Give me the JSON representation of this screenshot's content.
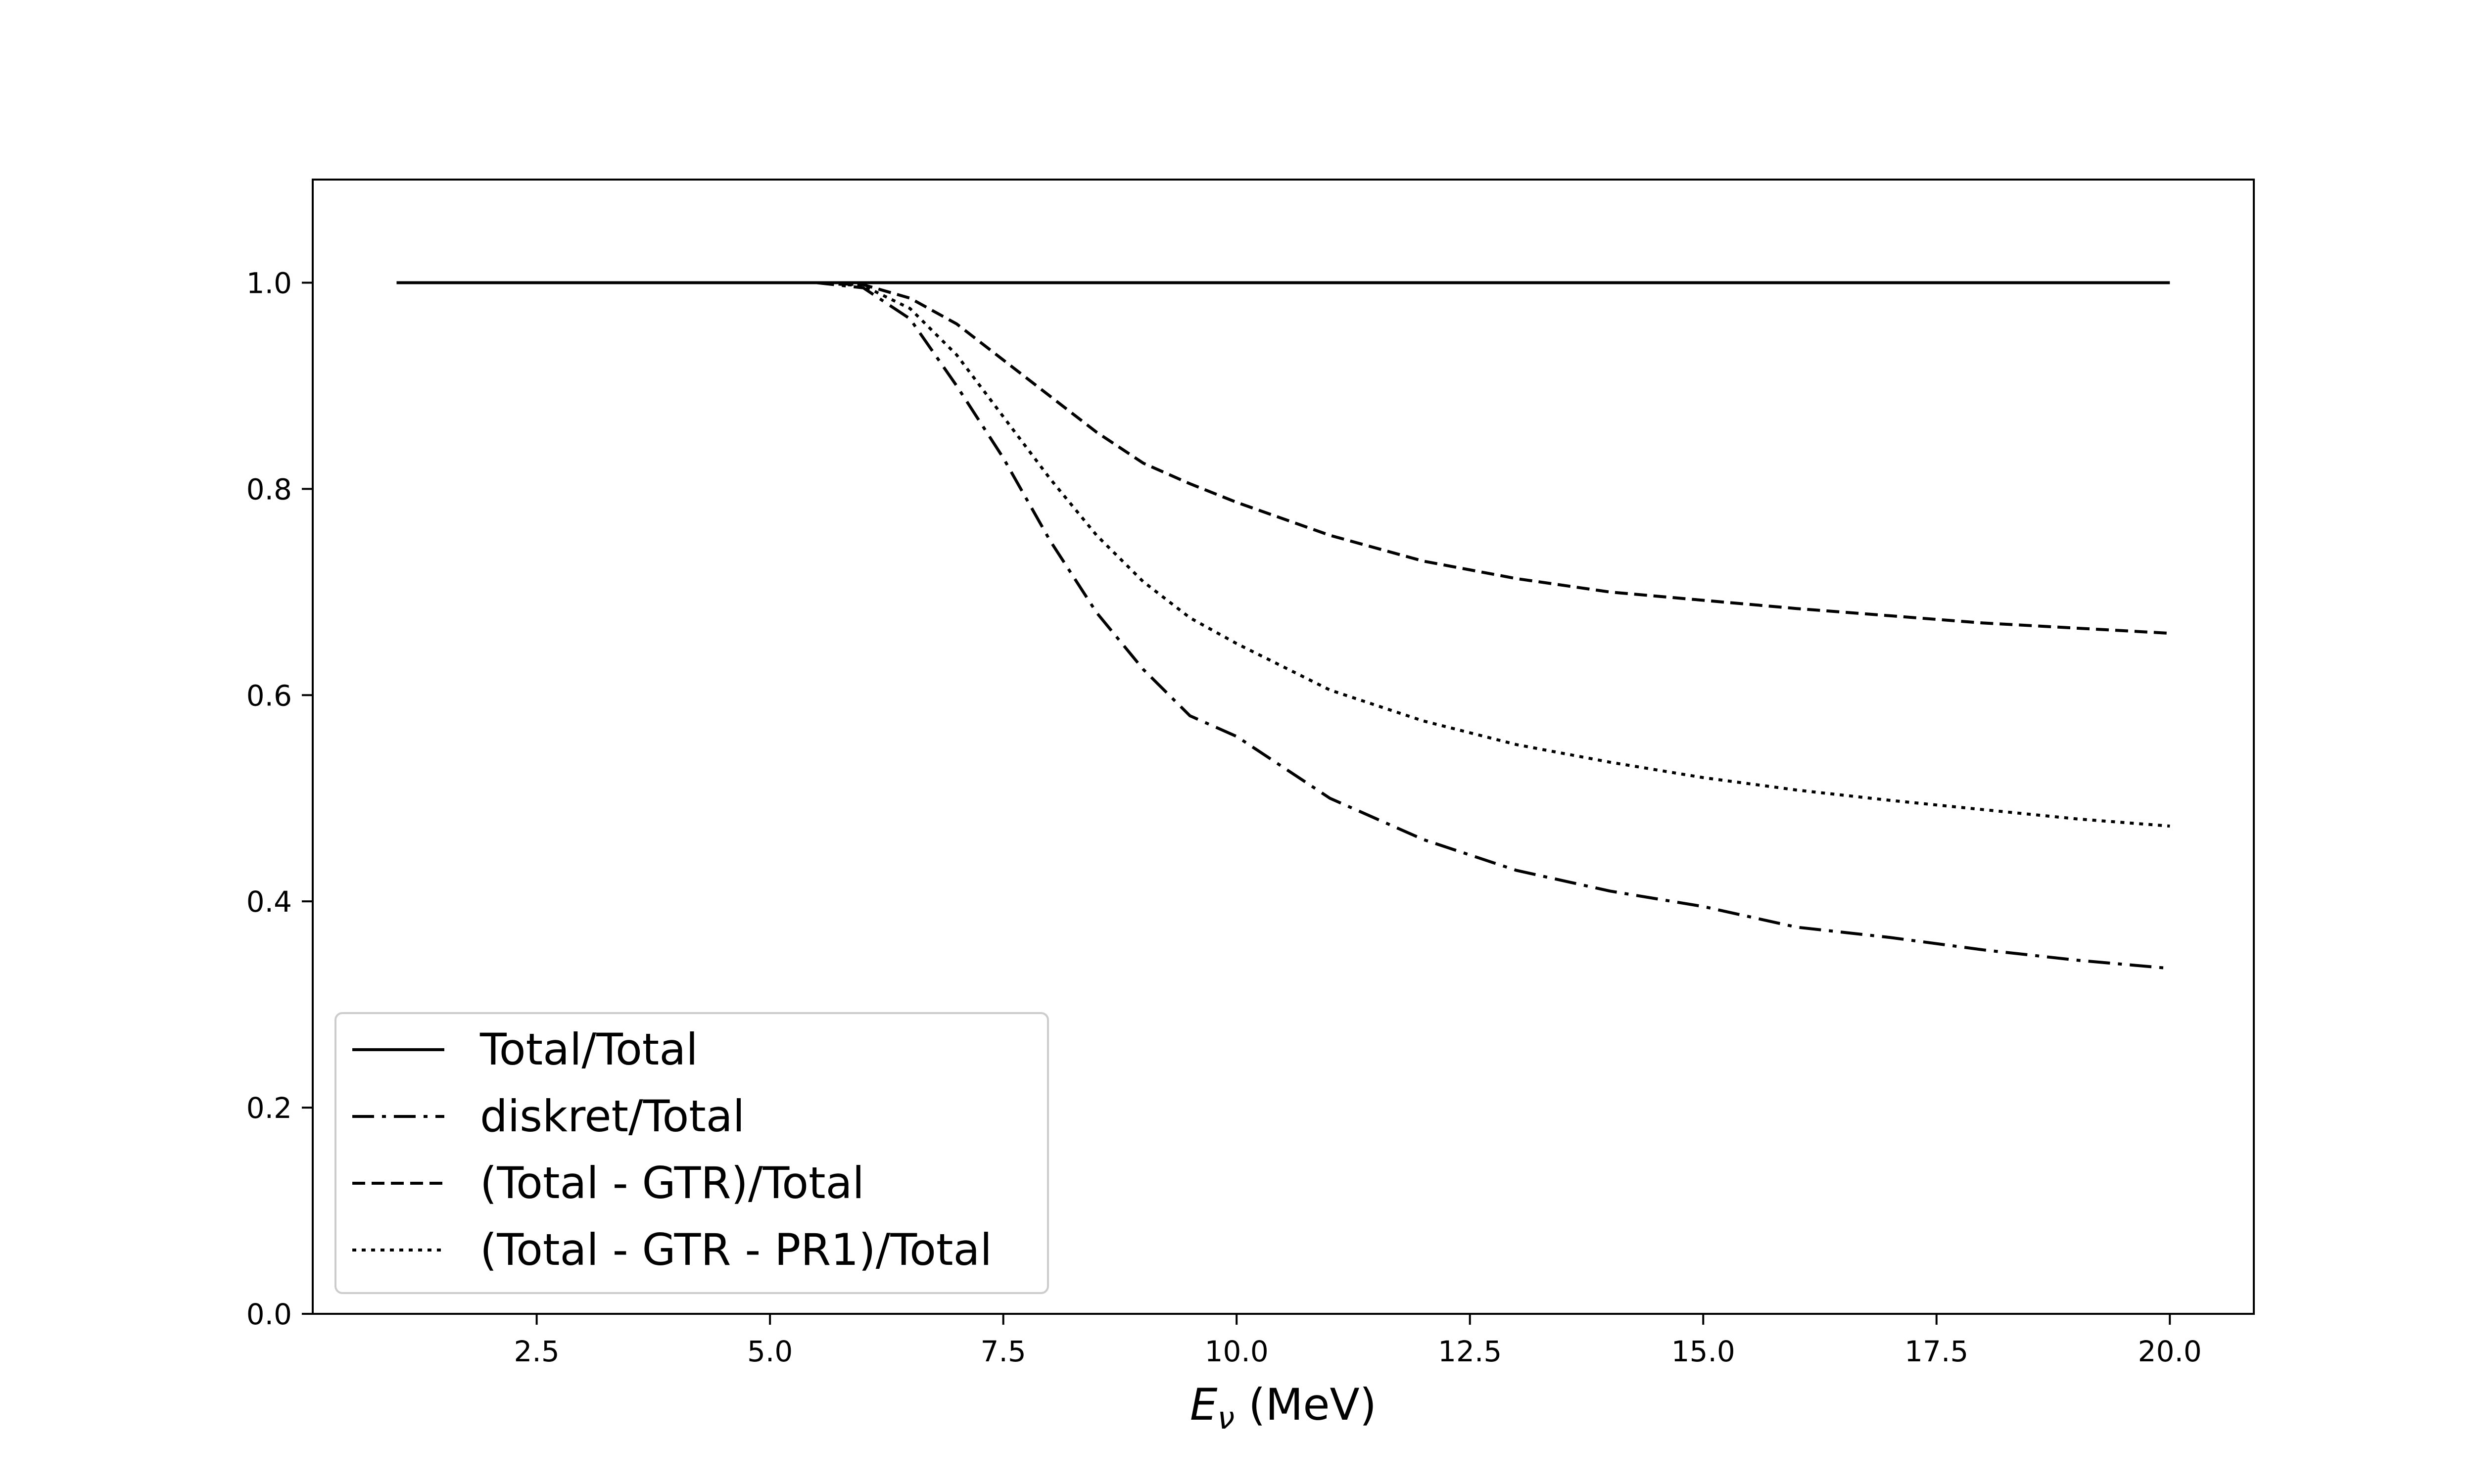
{
  "chart_data": {
    "type": "line",
    "title": "",
    "xlabel_var": "E",
    "xlabel_sub": "ν",
    "xlabel_unit": " (MeV)",
    "ylabel": "",
    "xlim": [
      0.1,
      20.9
    ],
    "ylim": [
      0.0,
      1.1
    ],
    "xticks": [
      2.5,
      5.0,
      7.5,
      10.0,
      12.5,
      15.0,
      17.5,
      20.0
    ],
    "xtick_labels": [
      "2.5",
      "5.0",
      "7.5",
      "10.0",
      "12.5",
      "15.0",
      "17.5",
      "20.0"
    ],
    "yticks": [
      0.0,
      0.2,
      0.4,
      0.6,
      0.8,
      1.0
    ],
    "ytick_labels": [
      "0.0",
      "0.2",
      "0.4",
      "0.6",
      "0.8",
      "1.0"
    ],
    "grid": false,
    "legend_position": "lower-left",
    "x": [
      1.0,
      2.0,
      3.0,
      4.0,
      5.0,
      5.5,
      6.0,
      6.5,
      7.0,
      7.5,
      8.0,
      8.5,
      9.0,
      9.5,
      10.0,
      11.0,
      12.0,
      13.0,
      14.0,
      15.0,
      16.0,
      17.0,
      18.0,
      19.0,
      20.0
    ],
    "series": [
      {
        "name": "Total/Total",
        "style": "solid",
        "color": "#000000",
        "values": [
          1.0,
          1.0,
          1.0,
          1.0,
          1.0,
          1.0,
          1.0,
          1.0,
          1.0,
          1.0,
          1.0,
          1.0,
          1.0,
          1.0,
          1.0,
          1.0,
          1.0,
          1.0,
          1.0,
          1.0,
          1.0,
          1.0,
          1.0,
          1.0,
          1.0
        ]
      },
      {
        "name": "diskret/Total",
        "style": "dashdot",
        "color": "#000000",
        "values": [
          1.0,
          1.0,
          1.0,
          1.0,
          1.0,
          1.0,
          0.995,
          0.965,
          0.9,
          0.83,
          0.75,
          0.68,
          0.625,
          0.58,
          0.56,
          0.5,
          0.46,
          0.43,
          0.41,
          0.395,
          0.375,
          0.365,
          0.353,
          0.343,
          0.335
        ]
      },
      {
        "name": "(Total - GTR)/Total",
        "style": "dashed",
        "color": "#000000",
        "values": [
          1.0,
          1.0,
          1.0,
          1.0,
          1.0,
          1.0,
          0.998,
          0.985,
          0.96,
          0.925,
          0.89,
          0.855,
          0.825,
          0.805,
          0.787,
          0.755,
          0.73,
          0.713,
          0.7,
          0.692,
          0.684,
          0.677,
          0.67,
          0.665,
          0.66
        ]
      },
      {
        "name": "(Total - GTR - PR1)/Total",
        "style": "dotted",
        "color": "#000000",
        "values": [
          1.0,
          1.0,
          1.0,
          1.0,
          1.0,
          1.0,
          0.997,
          0.975,
          0.93,
          0.87,
          0.81,
          0.755,
          0.71,
          0.675,
          0.65,
          0.605,
          0.575,
          0.552,
          0.535,
          0.52,
          0.508,
          0.498,
          0.489,
          0.48,
          0.473
        ]
      }
    ]
  }
}
